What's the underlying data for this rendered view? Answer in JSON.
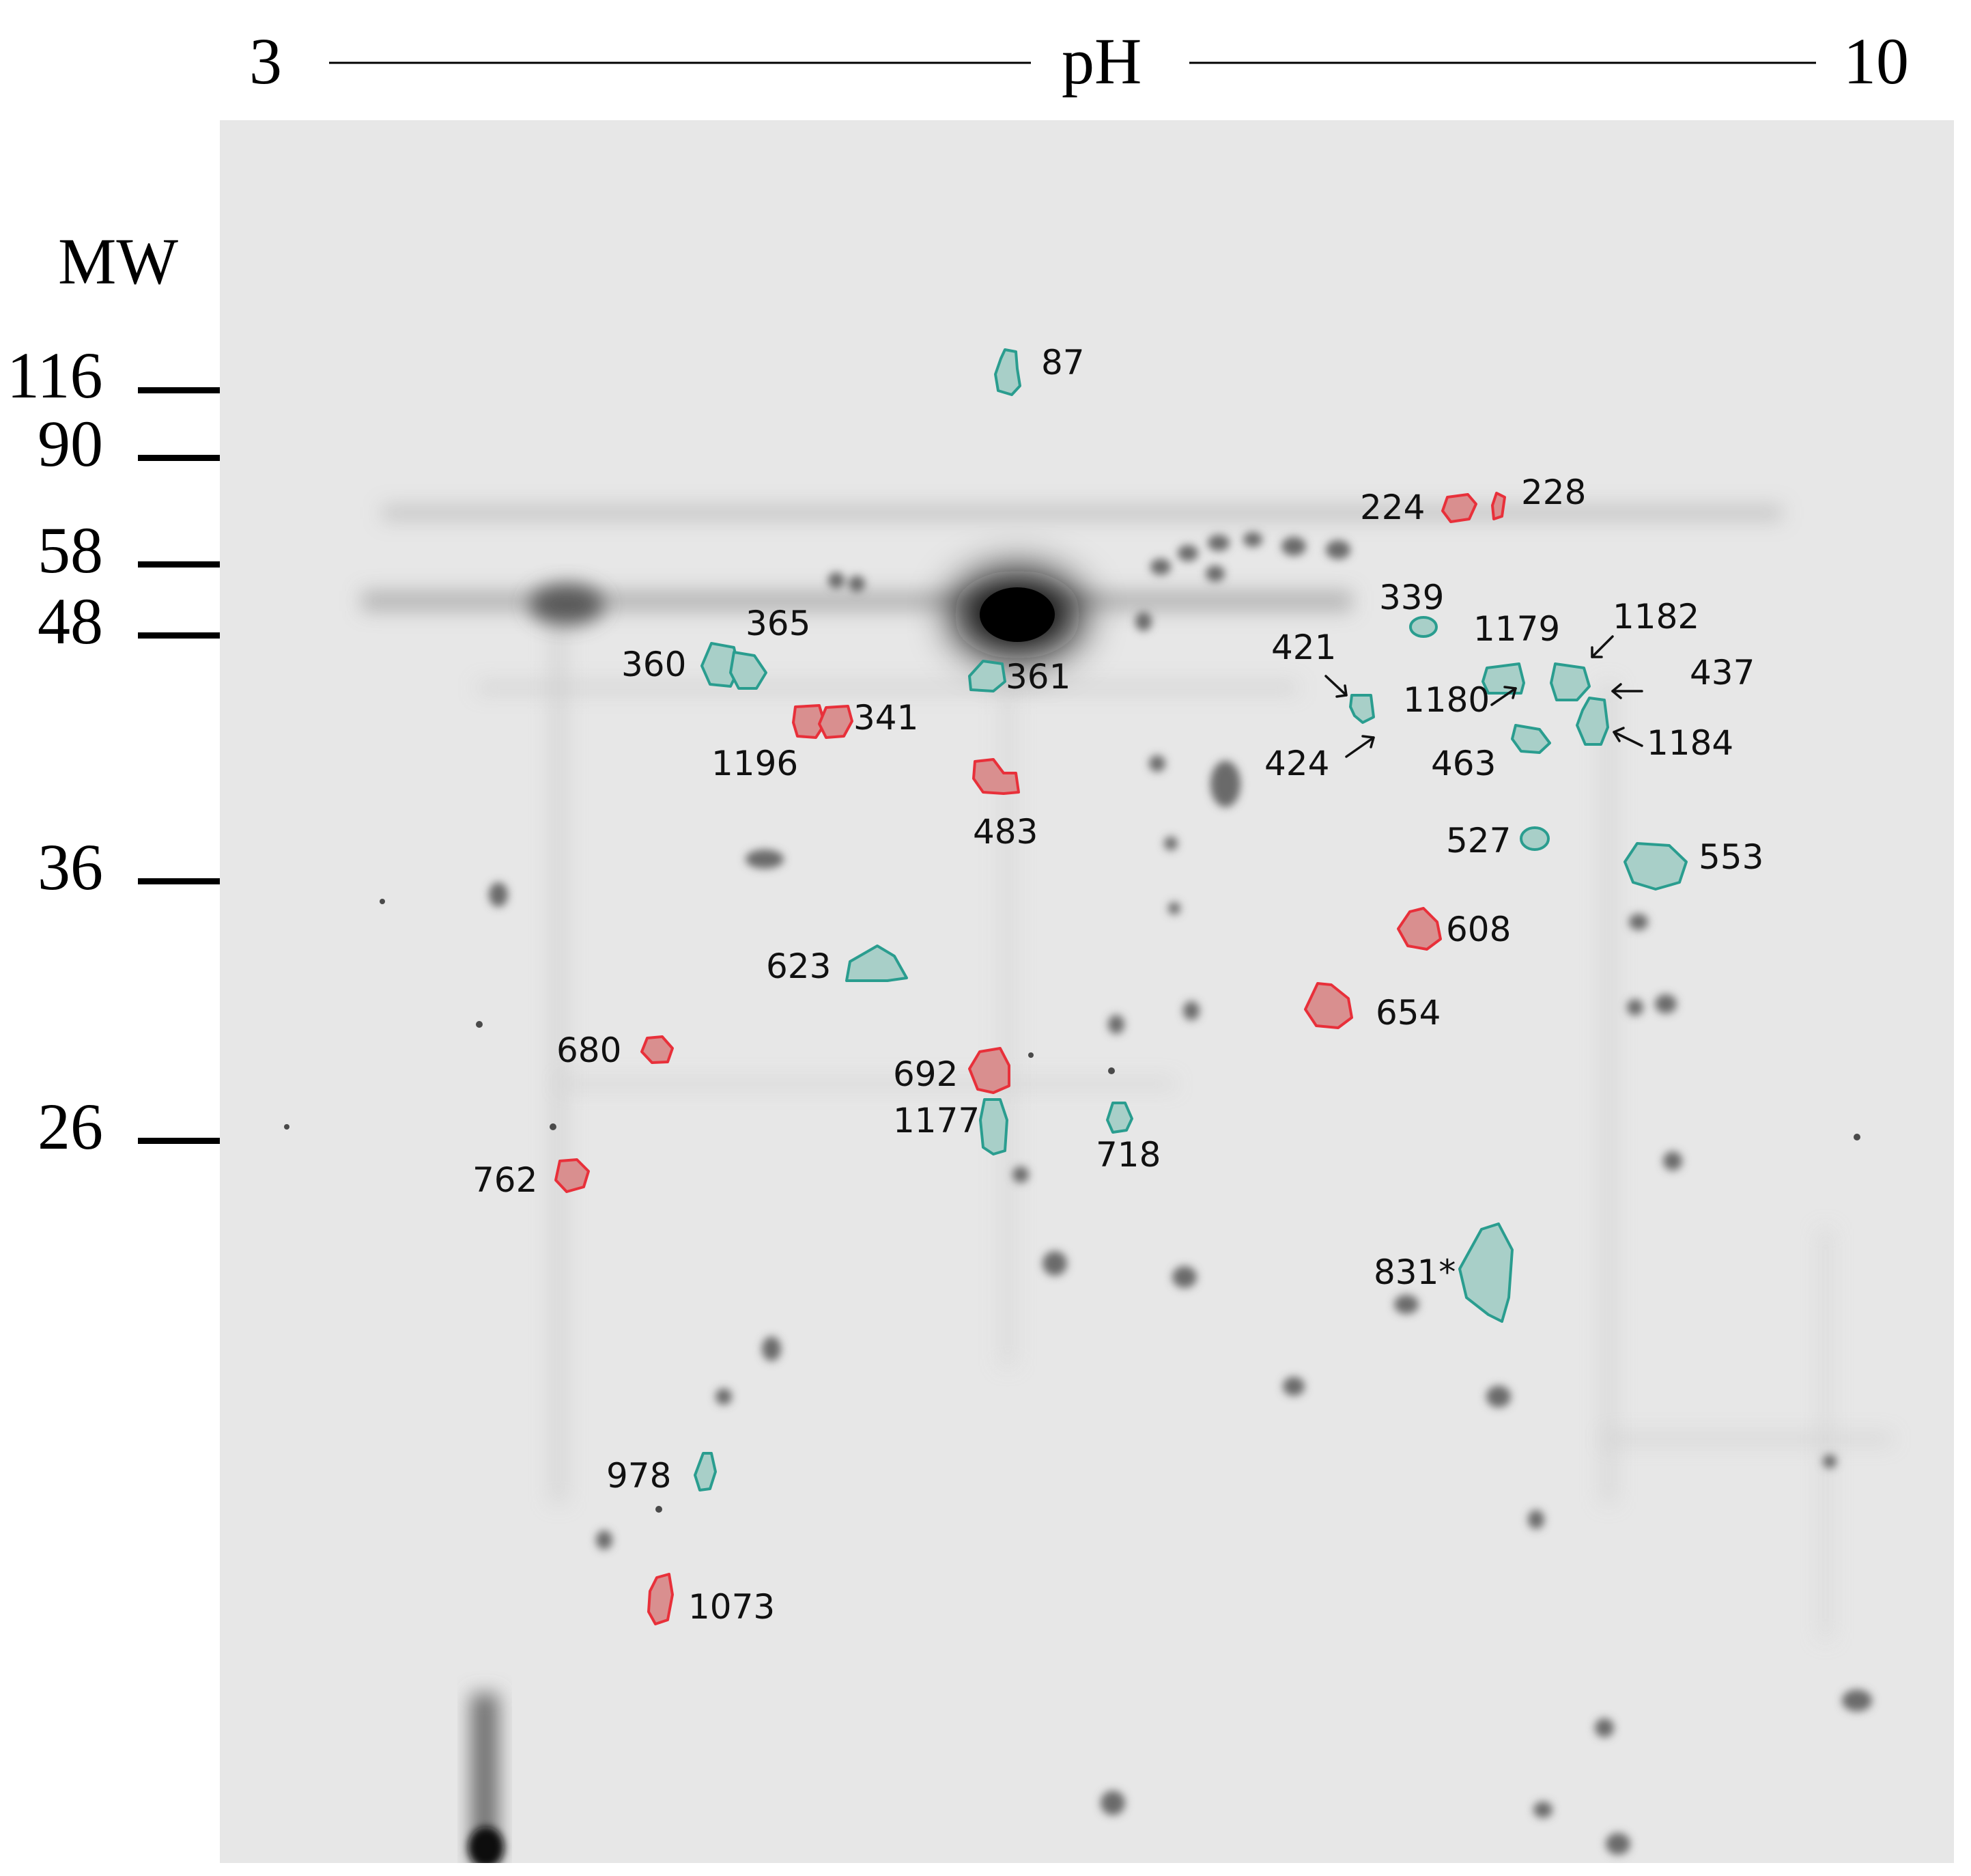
{
  "header": {
    "ph_min": "3",
    "ph_label": "pH",
    "ph_max": "10"
  },
  "mw_axis": {
    "title": "MW",
    "markers": [
      {
        "label": "116"
      },
      {
        "label": "90"
      },
      {
        "label": "58"
      },
      {
        "label": "48"
      },
      {
        "label": "36"
      },
      {
        "label": "26"
      }
    ]
  },
  "colors": {
    "up_regulated_outline": "#e8303a",
    "up_regulated_fill": "#d98f8f",
    "down_regulated_outline": "#2a9d8f",
    "down_regulated_fill": "#a8cfc8",
    "gel_background": "#e7e7e7"
  },
  "spots": [
    {
      "id": "87",
      "group": "teal"
    },
    {
      "id": "224",
      "group": "red"
    },
    {
      "id": "228",
      "group": "red"
    },
    {
      "id": "339",
      "group": "teal"
    },
    {
      "id": "1179",
      "group": "teal"
    },
    {
      "id": "1182",
      "group": "teal"
    },
    {
      "id": "365",
      "group": "teal"
    },
    {
      "id": "360",
      "group": "teal"
    },
    {
      "id": "361",
      "group": "teal"
    },
    {
      "id": "421",
      "group": "teal"
    },
    {
      "id": "437",
      "group": "teal"
    },
    {
      "id": "1180",
      "group": "teal"
    },
    {
      "id": "341",
      "group": "red"
    },
    {
      "id": "1196",
      "group": "red"
    },
    {
      "id": "424",
      "group": "teal"
    },
    {
      "id": "463",
      "group": "teal"
    },
    {
      "id": "1184",
      "group": "teal"
    },
    {
      "id": "483",
      "group": "red"
    },
    {
      "id": "527",
      "group": "teal"
    },
    {
      "id": "553",
      "group": "teal"
    },
    {
      "id": "608",
      "group": "red"
    },
    {
      "id": "623",
      "group": "teal"
    },
    {
      "id": "654",
      "group": "red"
    },
    {
      "id": "680",
      "group": "red"
    },
    {
      "id": "692",
      "group": "red"
    },
    {
      "id": "1177",
      "group": "teal"
    },
    {
      "id": "718",
      "group": "teal"
    },
    {
      "id": "762",
      "group": "red"
    },
    {
      "id": "831*",
      "group": "teal"
    },
    {
      "id": "978",
      "group": "teal"
    },
    {
      "id": "1073",
      "group": "red"
    }
  ]
}
